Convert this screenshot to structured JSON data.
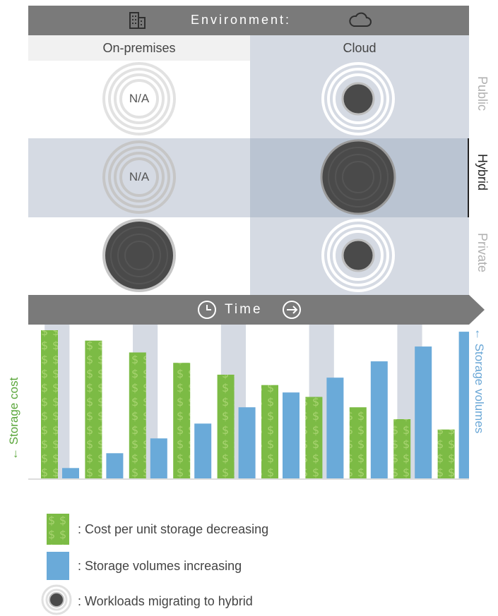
{
  "header": {
    "title": "Environment:",
    "left_icon": "building-icon",
    "right_icon": "cloud-icon"
  },
  "columns": {
    "onprem": "On-premises",
    "cloud": "Cloud"
  },
  "rows": [
    {
      "label": "Public",
      "active": false
    },
    {
      "label": "Hybrid",
      "active": true
    },
    {
      "label": "Private",
      "active": false
    }
  ],
  "cells": {
    "onprem_public": "N/A",
    "onprem_hybrid": "N/A"
  },
  "time": {
    "label": "Time",
    "left_icon": "clock-icon",
    "right_icon": "arrow-right-circle-icon"
  },
  "axes": {
    "left": "← Storage cost",
    "right": "← Storage volumes"
  },
  "colors": {
    "cost": "#78b843",
    "volume": "#6aaad9",
    "header": "#7a7a7a",
    "workload": "#4a4a4a"
  },
  "chart_data": {
    "type": "bar",
    "series": [
      {
        "name": "Cost per unit storage decreasing",
        "values": [
          100,
          93,
          85,
          78,
          70,
          63,
          55,
          48,
          40,
          33
        ]
      },
      {
        "name": "Storage volumes increasing",
        "values": [
          7,
          17,
          27,
          37,
          48,
          58,
          68,
          79,
          89,
          99
        ]
      }
    ],
    "ylim": [
      0,
      100
    ]
  },
  "legend": [
    {
      "text": ": Cost per unit storage decreasing"
    },
    {
      "text": ": Storage volumes increasing"
    },
    {
      "text": ": Workloads migrating to hybrid"
    }
  ]
}
